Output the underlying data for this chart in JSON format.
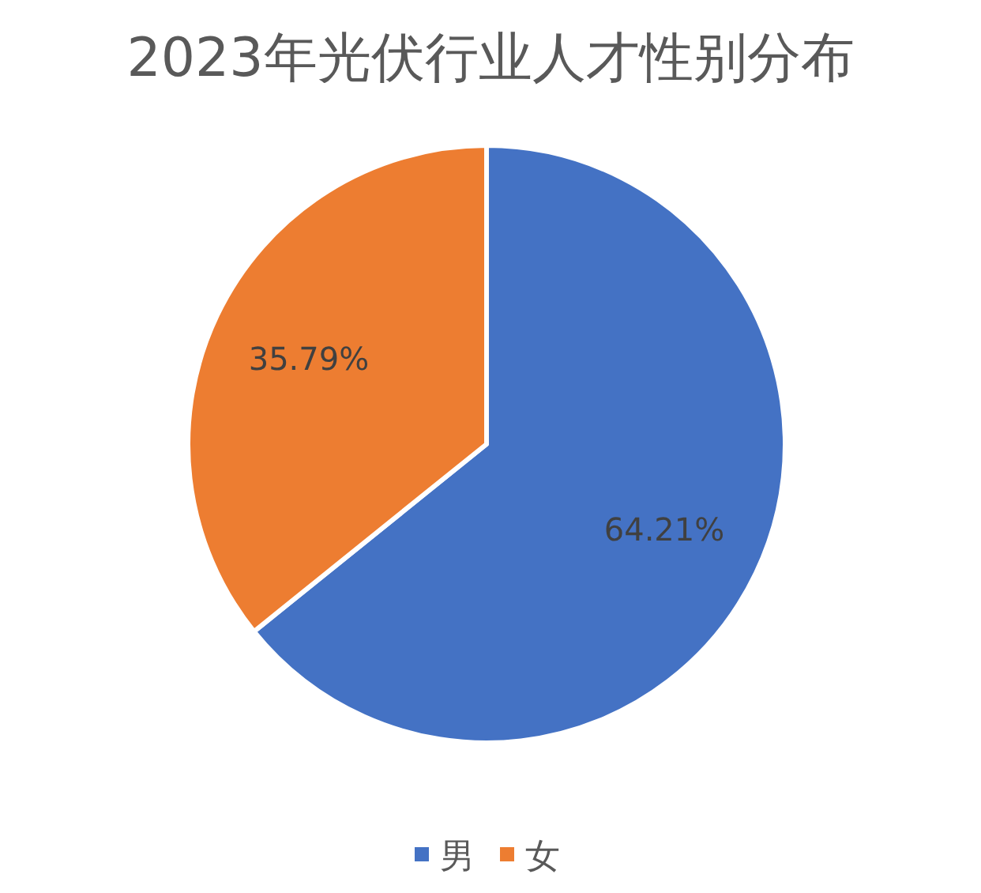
{
  "chart_data": {
    "type": "pie",
    "title": "2023年光伏行业人才性别分布",
    "categories": [
      "男",
      "女"
    ],
    "values": [
      64.21,
      35.79
    ],
    "colors": [
      "#4472c4",
      "#ed7d31"
    ],
    "value_labels": [
      "64.21%",
      "35.79%"
    ],
    "legend": "bottom"
  }
}
